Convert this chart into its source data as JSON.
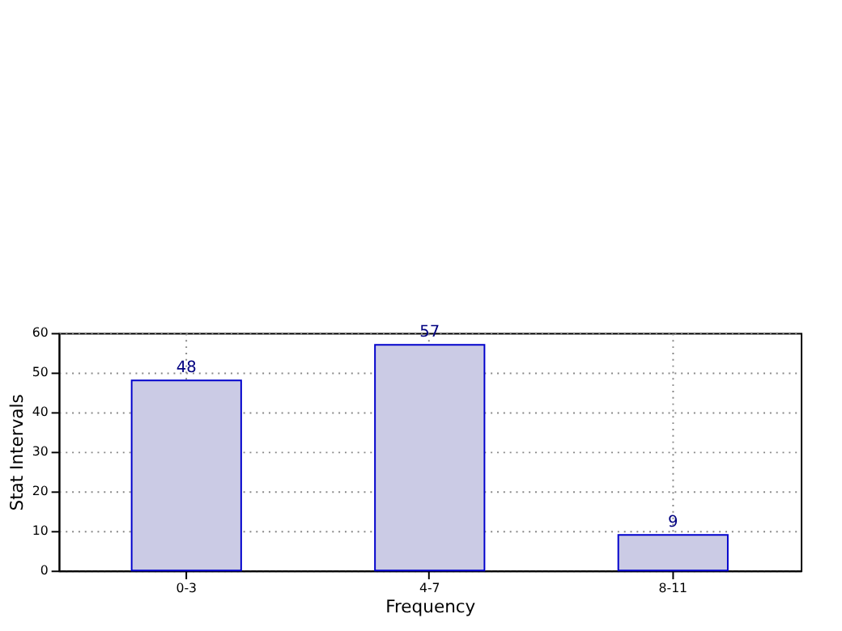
{
  "chart_data": {
    "type": "bar",
    "xlabel": "Frequency",
    "ylabel": "Stat Intervals",
    "categories": [
      "0-3",
      "4-7",
      "8-11"
    ],
    "values": [
      48,
      57,
      9
    ],
    "color": "#cbcbe5",
    "ylim": [
      0,
      60
    ],
    "yticks": [
      0,
      10,
      20,
      30,
      40,
      50,
      60
    ],
    "grid": true,
    "data_labels": true
  }
}
